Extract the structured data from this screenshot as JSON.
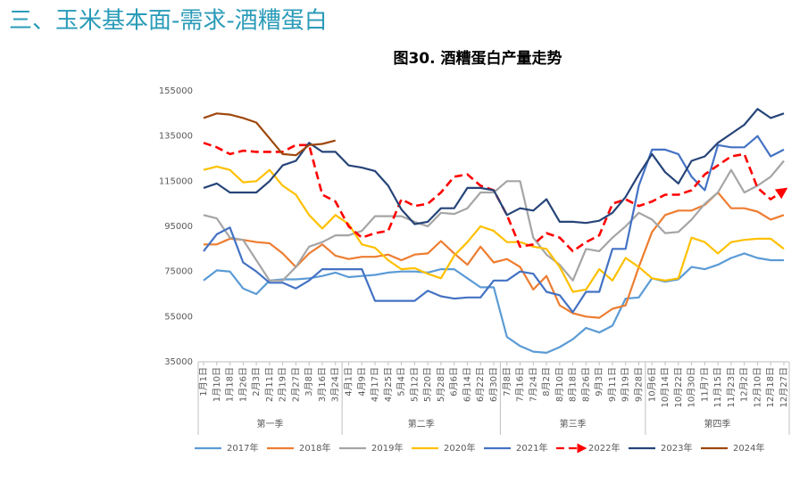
{
  "header": "三、玉米基本面-需求-酒糟蛋白",
  "chart_data": {
    "type": "line",
    "title": "图30. 酒糟蛋白产量走势",
    "categories": [
      "1月1日",
      "1月10日",
      "1月18日",
      "1月26日",
      "2月3日",
      "2月11日",
      "2月19日",
      "2月27日",
      "3月8日",
      "3月16日",
      "3月24日",
      "4月1日",
      "4月9日",
      "4月17日",
      "4月25日",
      "5月4日",
      "5月12日",
      "5月20日",
      "5月28日",
      "6月6日",
      "6月14日",
      "6月22日",
      "6月30日",
      "7月8日",
      "7月16日",
      "7月24日",
      "8月2日",
      "8月10日",
      "8月18日",
      "8月26日",
      "9月3日",
      "9月11日",
      "9月19日",
      "9月28日",
      "10月6日",
      "10月14日",
      "10月22日",
      "10月30日",
      "11月7日",
      "11月15日",
      "11月23日",
      "12月2日",
      "12月10日",
      "12月18日",
      "12月27日"
    ],
    "groups": [
      {
        "label": "第一季",
        "count": 11
      },
      {
        "label": "第二季",
        "count": 12
      },
      {
        "label": "第三季",
        "count": 11
      },
      {
        "label": "第四季",
        "count": 11
      }
    ],
    "ylim": [
      35000,
      155000
    ],
    "yticks": [
      35000,
      55000,
      75000,
      95000,
      115000,
      135000,
      155000
    ],
    "grid": false,
    "series": [
      {
        "name": "2017年",
        "color": "#5b9bd5",
        "values": [
          71000,
          75500,
          75000,
          67500,
          65000,
          71000,
          71500,
          71500,
          72000,
          73000,
          74500,
          72500,
          73000,
          73500,
          74500,
          75000,
          75000,
          74500,
          76000,
          76000,
          72000,
          68000,
          68000,
          46000,
          42000,
          39500,
          39000,
          41500,
          45000,
          50000,
          48000,
          51000,
          63000,
          63500,
          72000,
          70500,
          71500,
          77000,
          76000,
          78000,
          81000,
          83000,
          81000,
          80000,
          80000
        ]
      },
      {
        "name": "2018年",
        "color": "#ed7d31",
        "values": [
          87000,
          87000,
          89500,
          89000,
          88000,
          87500,
          83000,
          77000,
          83000,
          87000,
          82000,
          80500,
          81500,
          81500,
          82500,
          80000,
          82500,
          83000,
          88500,
          83000,
          78000,
          86000,
          79000,
          80500,
          77000,
          67000,
          73000,
          60000,
          56500,
          55000,
          54500,
          58500,
          60000,
          77000,
          92500,
          100000,
          102000,
          102000,
          104500,
          110000,
          103000,
          103000,
          101500,
          98000,
          100000
        ]
      },
      {
        "name": "2019年",
        "color": "#a5a5a5",
        "values": [
          100000,
          98500,
          90000,
          89000,
          80000,
          71000,
          71000,
          77000,
          86000,
          88000,
          91000,
          91000,
          93000,
          99500,
          99500,
          99500,
          97000,
          95000,
          101000,
          100500,
          103000,
          110000,
          110000,
          115000,
          115000,
          90000,
          82500,
          78000,
          71000,
          85000,
          84000,
          90000,
          95000,
          101000,
          98000,
          92000,
          92500,
          98000,
          105000,
          110000,
          120000,
          110000,
          113000,
          117000,
          124000
        ]
      },
      {
        "name": "2020年",
        "color": "#ffc000",
        "values": [
          120000,
          121500,
          120000,
          114500,
          115000,
          120000,
          113000,
          109000,
          100000,
          94000,
          100000,
          96000,
          87000,
          85500,
          80000,
          76000,
          76500,
          74000,
          72000,
          82000,
          88000,
          95000,
          93000,
          88000,
          88000,
          86000,
          85000,
          77000,
          66000,
          67000,
          76000,
          71000,
          81000,
          77000,
          72000,
          71000,
          72000,
          90000,
          88000,
          83000,
          88000,
          89000,
          89500,
          89500,
          85000
        ]
      },
      {
        "name": "2021年",
        "color": "#4472c4",
        "values": [
          84000,
          91500,
          94500,
          79000,
          75000,
          70000,
          70000,
          67500,
          71000,
          76000,
          76000,
          76000,
          76000,
          62000,
          62000,
          62000,
          62000,
          66500,
          64000,
          63000,
          63500,
          63500,
          71000,
          71000,
          75000,
          74000,
          66000,
          64500,
          57000,
          66000,
          66000,
          85000,
          85000,
          113000,
          129000,
          129000,
          127000,
          117000,
          111000,
          131000,
          130000,
          130000,
          135000,
          126000,
          129000
        ]
      },
      {
        "name": "2022年",
        "color": "#ff0000",
        "line_style": "dashed",
        "marker_end": "arrow",
        "values": [
          132000,
          130000,
          127000,
          128500,
          128000,
          128000,
          128000,
          131000,
          131000,
          109000,
          106000,
          95000,
          90000,
          92000,
          93000,
          107000,
          104000,
          105000,
          110000,
          117000,
          118000,
          113000,
          111000,
          100000,
          86000,
          87000,
          92000,
          90000,
          84000,
          88000,
          91000,
          105000,
          107000,
          104000,
          106000,
          109000,
          109000,
          111000,
          118000,
          122000,
          126000,
          127000,
          112000,
          107000,
          111000
        ]
      },
      {
        "name": "2023年",
        "color": "#264478",
        "values": [
          112000,
          114000,
          110000,
          110000,
          110000,
          115000,
          122000,
          124000,
          132000,
          128000,
          128000,
          122000,
          121000,
          119500,
          113000,
          102500,
          96000,
          97000,
          103000,
          103000,
          112000,
          112000,
          111000,
          100000,
          103000,
          102000,
          107000,
          97000,
          97000,
          96500,
          97500,
          101000,
          108000,
          118000,
          127000,
          119000,
          114000,
          124000,
          126000,
          132000,
          136000,
          140000,
          147000,
          143000,
          145000
        ]
      },
      {
        "name": "2024年",
        "color": "#9e480e",
        "values": [
          143000,
          145000,
          144500,
          143000,
          141000,
          134000,
          127000,
          126500,
          131000,
          131500,
          133000,
          null,
          null,
          null,
          null,
          null,
          null,
          null,
          null,
          null,
          null,
          null,
          null,
          null,
          null,
          null,
          null,
          null,
          null,
          null,
          null,
          null,
          null,
          null,
          null,
          null,
          null,
          null,
          null,
          null,
          null,
          null,
          null,
          null,
          null
        ]
      }
    ]
  }
}
